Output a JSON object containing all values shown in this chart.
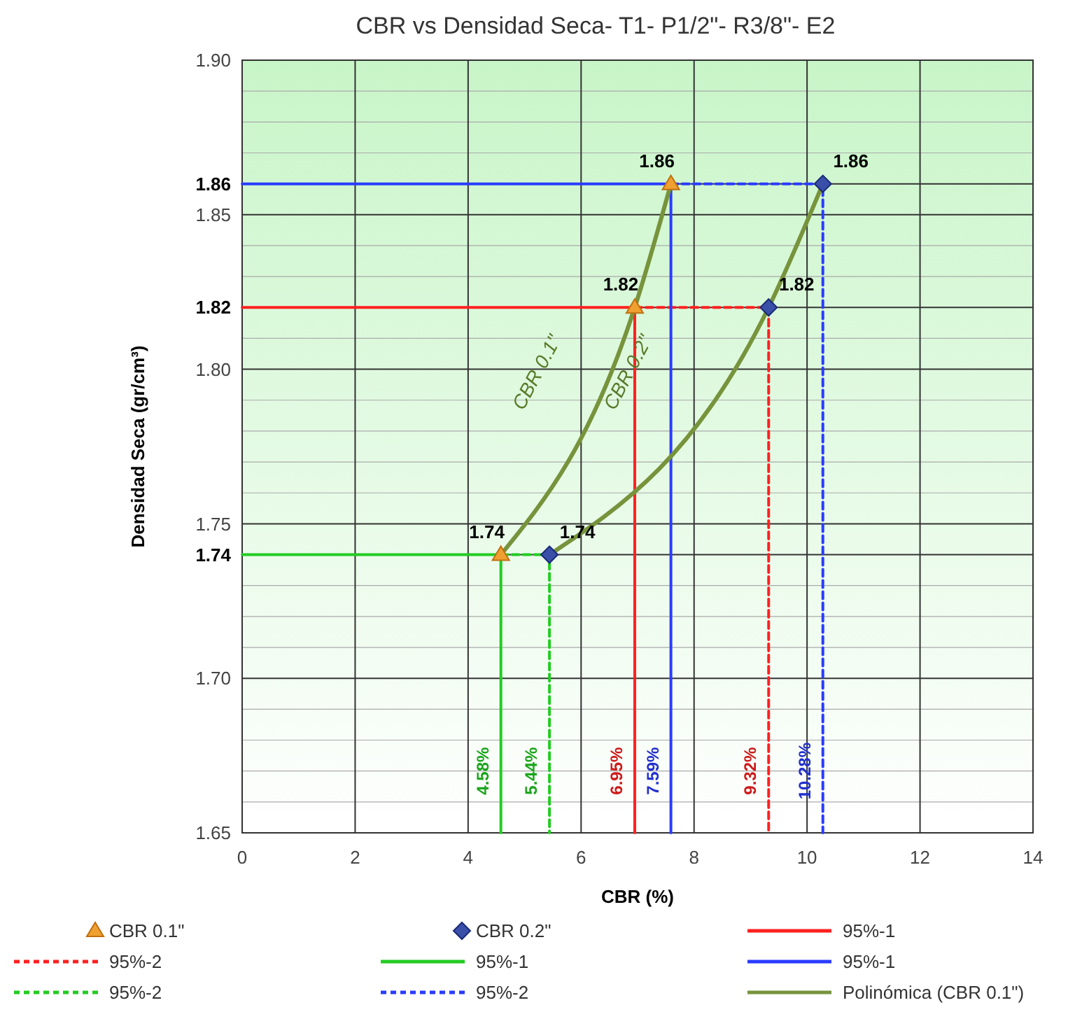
{
  "chart_data": {
    "type": "scatter",
    "title": "CBR vs Densidad Seca- T1- P1/2\"- R3/8\"- E2",
    "xlabel": "CBR  (%)",
    "ylabel": "Densidad Seca (gr/cm³)",
    "xlim": [
      0,
      14
    ],
    "xticks": [
      0,
      2,
      4,
      6,
      8,
      10,
      12,
      14
    ],
    "ylim": [
      1.65,
      1.9
    ],
    "yticks": [
      1.65,
      {
        "value": 1.66,
        "label": null
      },
      {
        "value": 1.67,
        "label": null
      },
      {
        "value": 1.68,
        "label": null
      },
      {
        "value": 1.69,
        "label": null
      },
      {
        "value": 1.7,
        "label": "1.70"
      },
      {
        "value": 1.71,
        "label": null
      },
      {
        "value": 1.72,
        "label": null
      },
      {
        "value": 1.73,
        "label": null
      },
      1.74,
      1.75,
      {
        "value": 1.76,
        "label": null
      },
      {
        "value": 1.77,
        "label": null
      },
      {
        "value": 1.78,
        "label": null
      },
      {
        "value": 1.79,
        "label": null
      },
      {
        "value": 1.8,
        "label": "1.80"
      },
      {
        "value": 1.81,
        "label": null
      },
      1.82,
      {
        "value": 1.83,
        "label": null
      },
      {
        "value": 1.84,
        "label": null
      },
      1.85,
      1.86,
      {
        "value": 1.87,
        "label": null
      },
      {
        "value": 1.88,
        "label": null
      },
      {
        "value": 1.89,
        "label": null
      },
      {
        "value": 1.9,
        "label": "1.90"
      }
    ],
    "grid": true,
    "legend": "bottom",
    "series": [
      {
        "name": "CBR 0.1\"",
        "marker": "triangle",
        "color": "#f0a030",
        "x": [
          4.58,
          6.95,
          7.59
        ],
        "values": [
          1.74,
          1.82,
          1.86
        ],
        "data_labels": true
      },
      {
        "name": "CBR 0.2\"",
        "marker": "diamond",
        "color": "#3a4fa8",
        "x": [
          5.44,
          9.32,
          10.28
        ],
        "values": [
          1.74,
          1.82,
          1.86
        ],
        "data_labels": true
      },
      {
        "name": "95%-1",
        "type": "line",
        "line_style": "solid",
        "color": "#ff2020",
        "x": [
          0,
          6.95,
          6.95
        ],
        "values": [
          1.82,
          1.82,
          1.65
        ]
      },
      {
        "name": "95%-2",
        "type": "line",
        "line_style": "dashed",
        "color": "#ff2020",
        "x": [
          6.95,
          9.32,
          9.32
        ],
        "values": [
          1.82,
          1.82,
          1.65
        ]
      },
      {
        "name": "95%-1",
        "type": "line",
        "line_style": "solid",
        "color": "#22cc22",
        "x": [
          0,
          4.58,
          4.58
        ],
        "values": [
          1.74,
          1.74,
          1.65
        ]
      },
      {
        "name": "95%-1",
        "type": "line",
        "line_style": "solid",
        "color": "#2a3cff",
        "x": [
          0,
          7.59,
          7.59
        ],
        "values": [
          1.86,
          1.86,
          1.65
        ]
      },
      {
        "name": "95%-2",
        "type": "line",
        "line_style": "dashed",
        "color": "#22cc22",
        "x": [
          4.58,
          5.44,
          5.44
        ],
        "values": [
          1.74,
          1.74,
          1.65
        ]
      },
      {
        "name": "95%-2",
        "type": "line",
        "line_style": "dashed",
        "color": "#2a3cff",
        "x": [
          7.59,
          10.28,
          10.28
        ],
        "values": [
          1.86,
          1.86,
          1.65
        ]
      },
      {
        "name": "Polinómica (CBR 0.1\")",
        "type": "line",
        "line_style": "solid",
        "color": "#77933c",
        "x": [
          4.58,
          6.95,
          7.59
        ],
        "values": [
          1.74,
          1.82,
          1.86
        ]
      },
      {
        "type": "line",
        "line_style": "solid",
        "color": "#77933c",
        "x": [
          5.44,
          9.32,
          10.28
        ],
        "values": [
          1.74,
          1.82,
          1.86
        ]
      }
    ],
    "annotations": [
      "CBR 0.1\"",
      "CBR 0.2\"",
      {
        "text": "4.58%",
        "x": 4.58,
        "y": 1.67
      },
      {
        "text": "5.44%",
        "x": 5.44,
        "y": 1.67
      },
      {
        "text": "6.95%",
        "x": 6.95,
        "y": 1.67
      },
      {
        "text": "7.59%",
        "x": 7.59,
        "y": 1.67
      },
      {
        "text": "9.32%",
        "x": 9.32,
        "y": 1.67
      },
      {
        "text": "10.28%",
        "x": 10.28,
        "y": 1.67
      }
    ]
  }
}
